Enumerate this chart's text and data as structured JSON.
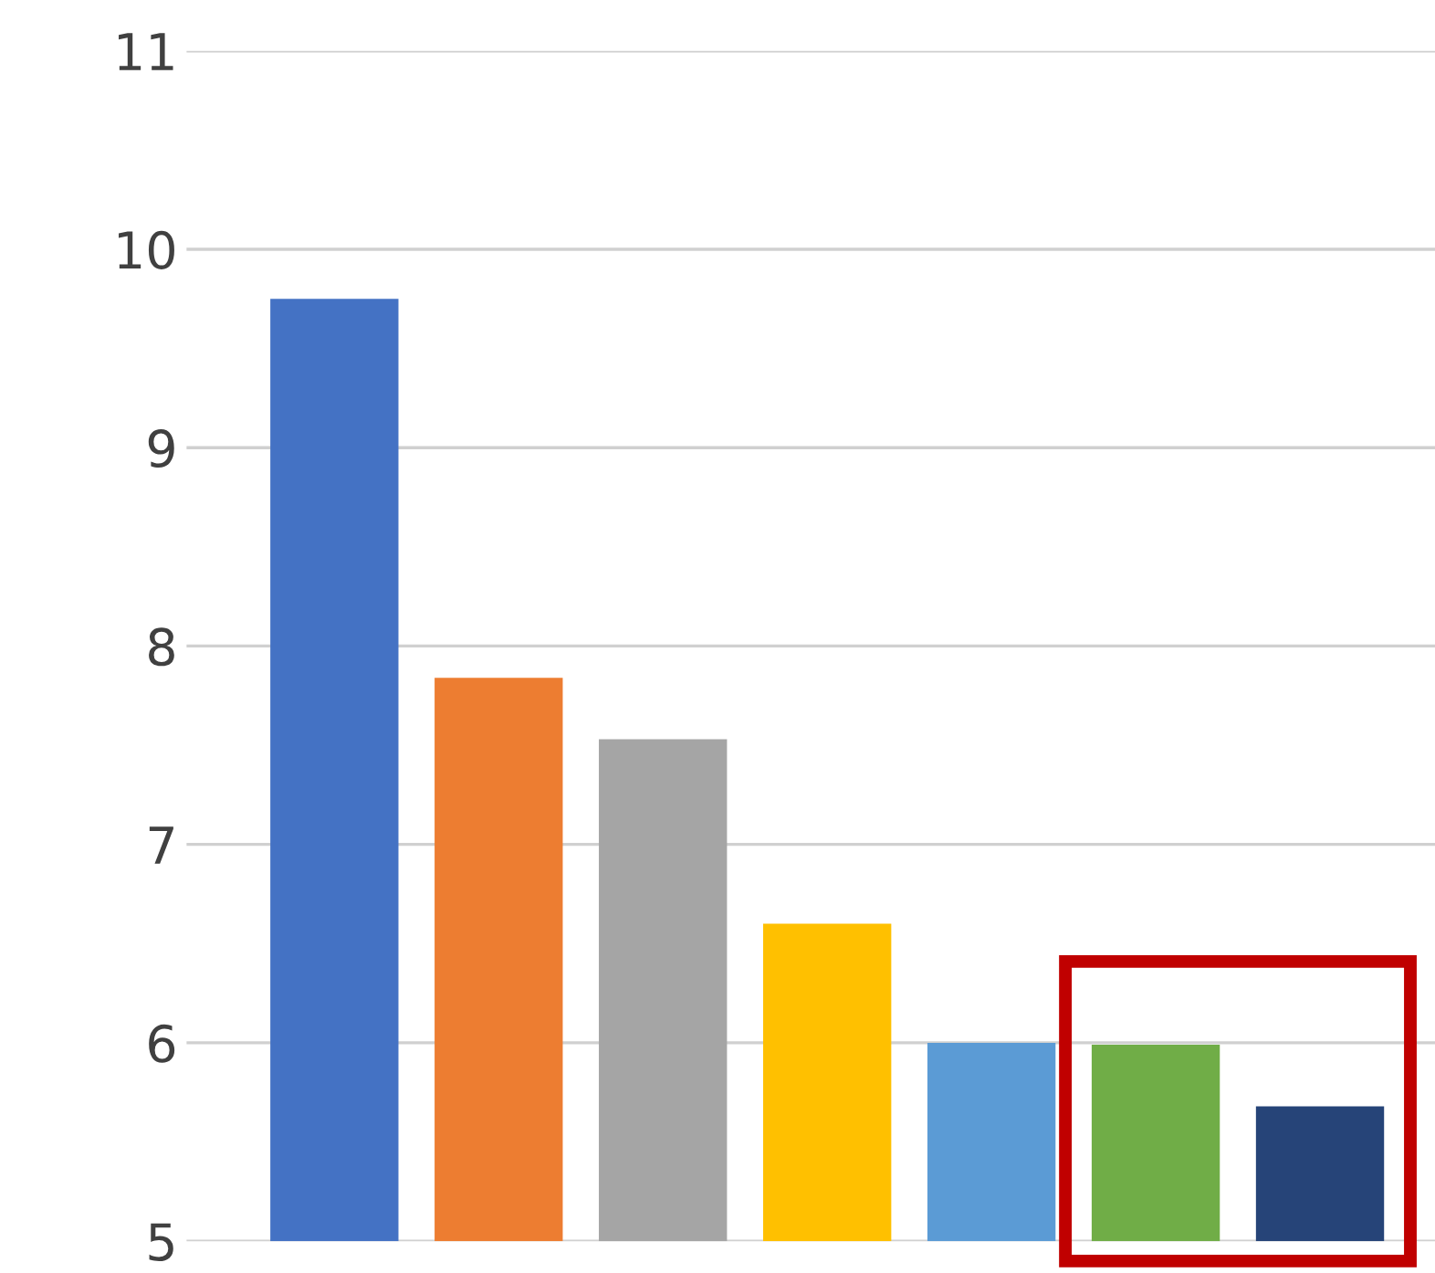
{
  "chart_data": {
    "type": "bar",
    "categories": [
      null,
      null,
      null,
      null,
      null,
      null,
      null
    ],
    "values": [
      9.75,
      7.84,
      7.53,
      6.6,
      6.0,
      5.99,
      5.68
    ],
    "colors": [
      "#4472c4",
      "#ed7d31",
      "#a5a5a5",
      "#ffc000",
      "#5b9bd5",
      "#70ad47",
      "#264478"
    ],
    "ylim": [
      5,
      11
    ],
    "yticks": [
      5,
      6,
      7,
      8,
      9,
      10,
      11
    ],
    "grid": "y",
    "tick_labels": "y"
  }
}
